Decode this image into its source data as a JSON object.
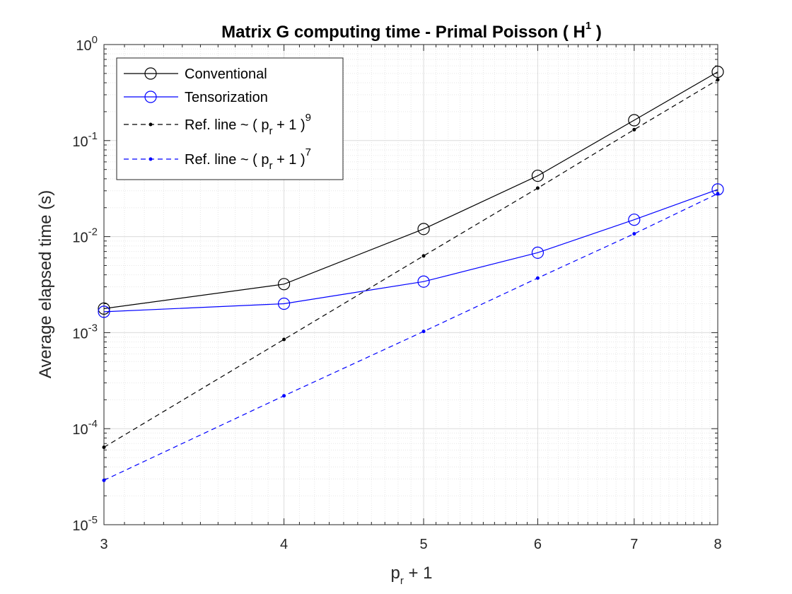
{
  "chart_data": {
    "type": "line",
    "title": "Matrix G computing time - Primal Poisson ( H",
    "title_sup": "1",
    "title_end": " )",
    "xlabel": "p",
    "xlabel_sub": "r",
    "xlabel_end": " + 1",
    "ylabel": "Average elapsed time (s)",
    "xscale": "log",
    "yscale": "log",
    "xlim": [
      3,
      8
    ],
    "ylim": [
      1e-05,
      1
    ],
    "grid": true,
    "minor_grid": true,
    "legend_location": "top-left",
    "x_ticks": [
      "3",
      "4",
      "5",
      "6",
      "7",
      "8"
    ],
    "x_tick_values": [
      3,
      4,
      5,
      6,
      7,
      8
    ],
    "y_tick_values": [
      1e-05,
      0.0001,
      0.001,
      0.01,
      0.1,
      1
    ],
    "y_tick_labels": [
      {
        "base": "10",
        "exp": "-5"
      },
      {
        "base": "10",
        "exp": "-4"
      },
      {
        "base": "10",
        "exp": "-3"
      },
      {
        "base": "10",
        "exp": "-2"
      },
      {
        "base": "10",
        "exp": "-1"
      },
      {
        "base": "10",
        "exp": "0"
      }
    ],
    "x": [
      3,
      4,
      5,
      6,
      7,
      8
    ],
    "series": [
      {
        "name": "Conventional",
        "color": "#000000",
        "style": "solid",
        "marker": "circle",
        "values": [
          0.00178,
          0.0032,
          0.012,
          0.043,
          0.163,
          0.52
        ]
      },
      {
        "name": "Tensorization",
        "color": "#0000ff",
        "style": "solid",
        "marker": "circle",
        "values": [
          0.00165,
          0.002,
          0.0034,
          0.0068,
          0.015,
          0.031
        ]
      },
      {
        "name": "Ref. line ~ ( p",
        "legend_sub": "r",
        "legend_end": " + 1 )",
        "legend_sup": "9",
        "color": "#000000",
        "style": "dashed",
        "marker": "dot",
        "values": [
          6.4e-05,
          0.00085,
          0.0063,
          0.032,
          0.13,
          0.43
        ]
      },
      {
        "name": "Ref. line ~ ( p",
        "legend_sub": "r",
        "legend_end": " + 1 )",
        "legend_sup": "7",
        "color": "#0000ff",
        "style": "dashed",
        "marker": "dot",
        "values": [
          2.9e-05,
          0.00022,
          0.00103,
          0.0037,
          0.0107,
          0.028
        ]
      }
    ]
  }
}
